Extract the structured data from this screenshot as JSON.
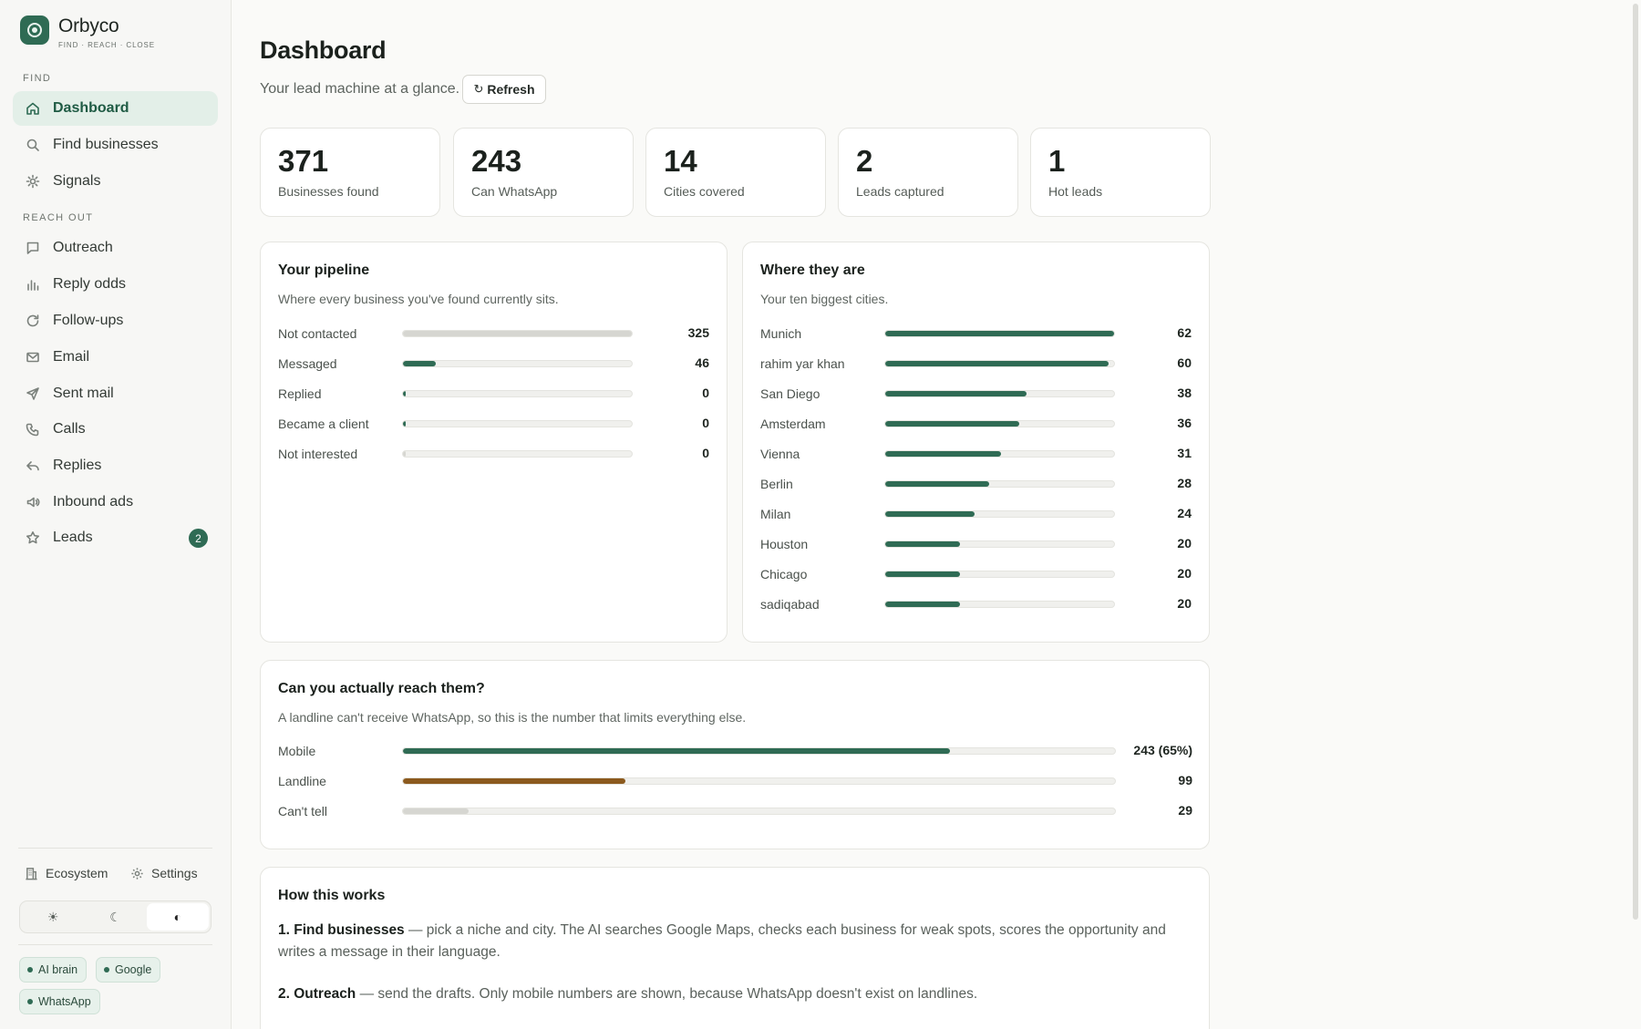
{
  "brand": {
    "name": "Orbyco",
    "tagline": "FIND · REACH · CLOSE"
  },
  "sidebar": {
    "section_find": "FIND",
    "section_reach": "REACH OUT",
    "items": [
      {
        "label": "Dashboard",
        "icon": "home-icon"
      },
      {
        "label": "Find businesses",
        "icon": "search-icon"
      },
      {
        "label": "Signals",
        "icon": "sun-icon"
      },
      {
        "label": "Outreach",
        "icon": "message-icon"
      },
      {
        "label": "Reply odds",
        "icon": "bar-chart-icon"
      },
      {
        "label": "Follow-ups",
        "icon": "refresh-icon"
      },
      {
        "label": "Email",
        "icon": "mail-icon"
      },
      {
        "label": "Sent mail",
        "icon": "send-icon"
      },
      {
        "label": "Calls",
        "icon": "phone-icon"
      },
      {
        "label": "Replies",
        "icon": "reply-icon"
      },
      {
        "label": "Inbound ads",
        "icon": "megaphone-icon"
      },
      {
        "label": "Leads",
        "icon": "star-icon",
        "badge": "2"
      }
    ],
    "footer": {
      "ecosystem": "Ecosystem",
      "settings": "Settings",
      "theme": {
        "light": "☀",
        "dark": "☾",
        "auto": "◐",
        "selected": "auto"
      },
      "chips": [
        "AI brain",
        "Google",
        "WhatsApp"
      ]
    }
  },
  "header": {
    "title": "Dashboard",
    "subtitle": "Your lead machine at a glance.",
    "refresh_label": "Refresh"
  },
  "stats": [
    {
      "value": "371",
      "label": "Businesses found"
    },
    {
      "value": "243",
      "label": "Can WhatsApp"
    },
    {
      "value": "14",
      "label": "Cities covered"
    },
    {
      "value": "2",
      "label": "Leads captured"
    },
    {
      "value": "1",
      "label": "Hot leads"
    }
  ],
  "pipeline": {
    "title": "Your pipeline",
    "subtitle": "Where every business you've found currently sits.",
    "rows": [
      {
        "label": "Not contacted",
        "value": 325,
        "display": "325"
      },
      {
        "label": "Messaged",
        "value": 46,
        "display": "46"
      },
      {
        "label": "Replied",
        "value": 0,
        "display": "0"
      },
      {
        "label": "Became a client",
        "value": 0,
        "display": "0"
      },
      {
        "label": "Not interested",
        "value": 0,
        "display": "0"
      }
    ]
  },
  "cities": {
    "title": "Where they are",
    "subtitle": "Your ten biggest cities.",
    "rows": [
      {
        "label": "Munich",
        "value": 62,
        "display": "62"
      },
      {
        "label": "rahim yar khan",
        "value": 60,
        "display": "60"
      },
      {
        "label": "San Diego",
        "value": 38,
        "display": "38"
      },
      {
        "label": "Amsterdam",
        "value": 36,
        "display": "36"
      },
      {
        "label": "Vienna",
        "value": 31,
        "display": "31"
      },
      {
        "label": "Berlin",
        "value": 28,
        "display": "28"
      },
      {
        "label": "Milan",
        "value": 24,
        "display": "24"
      },
      {
        "label": "Houston",
        "value": 20,
        "display": "20"
      },
      {
        "label": "Chicago",
        "value": 20,
        "display": "20"
      },
      {
        "label": "sadiqabad",
        "value": 20,
        "display": "20"
      }
    ]
  },
  "reach": {
    "title": "Can you actually reach them?",
    "subtitle": "A landline can't receive WhatsApp, so this is the number that limits everything else.",
    "rows": [
      {
        "label": "Mobile",
        "value": 243,
        "display": "243 (65%)"
      },
      {
        "label": "Landline",
        "value": 99,
        "display": "99"
      },
      {
        "label": "Can't tell",
        "value": 29,
        "display": "29"
      }
    ]
  },
  "how": {
    "title": "How this works",
    "steps": [
      {
        "lead": "1. Find businesses",
        "text": " — pick a niche and city. The AI searches Google Maps, checks each business for weak spots, scores the opportunity and writes a message in their language."
      },
      {
        "lead": "2. Outreach",
        "text": " — send the drafts. Only mobile numbers are shown, because WhatsApp doesn't exist on landlines."
      }
    ]
  },
  "colors": {
    "accent": "#2f6b54",
    "landline": "#8c5a1e",
    "neutral": "#d6d6d1"
  }
}
